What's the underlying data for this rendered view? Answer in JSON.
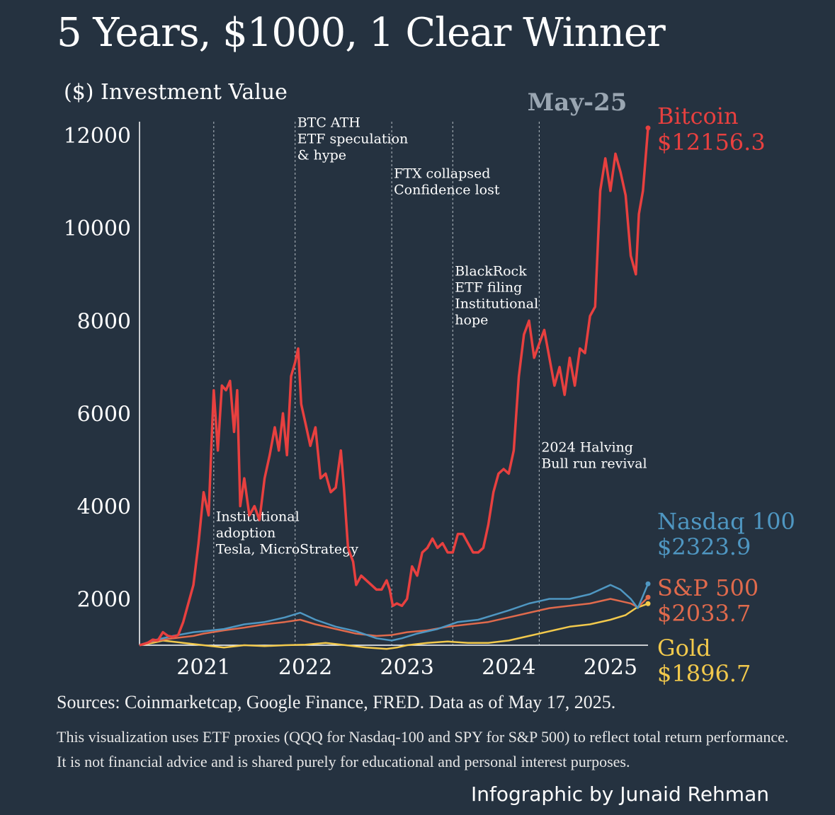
{
  "title": "5 Years, $1000, 1 Clear Winner",
  "footer": {
    "sources": "Sources: Coinmarketcap, Google Finance, FRED. Data as of May 17, 2025.",
    "disclaimer": "This visualization uses ETF proxies (QQQ for Nasdaq-100 and SPY for S&P 500) to reflect total return performance. It is not financial advice and is shared purely for educational and personal interest purposes.",
    "credit": "Infographic by Junaid Rehman"
  },
  "chart_data": {
    "type": "line",
    "ylabel": "($) Investment Value",
    "ylim": [
      1000,
      12200
    ],
    "xlim": [
      2020.37,
      2025.37
    ],
    "yticks": [
      2000,
      4000,
      6000,
      8000,
      10000,
      12000
    ],
    "xticks": [
      {
        "value": 2021,
        "label": "2021"
      },
      {
        "value": 2022,
        "label": "2022"
      },
      {
        "value": 2023,
        "label": "2023"
      },
      {
        "value": 2024,
        "label": "2024"
      },
      {
        "value": 2025,
        "label": "2025"
      }
    ],
    "date_marker": "May-25",
    "series": [
      {
        "name": "Bitcoin",
        "end_label": "$12156.3",
        "color": "#e8403f",
        "points": [
          [
            2020.37,
            1000
          ],
          [
            2020.45,
            1050
          ],
          [
            2020.5,
            1120
          ],
          [
            2020.55,
            1100
          ],
          [
            2020.6,
            1280
          ],
          [
            2020.65,
            1200
          ],
          [
            2020.7,
            1180
          ],
          [
            2020.75,
            1220
          ],
          [
            2020.8,
            1500
          ],
          [
            2020.85,
            1900
          ],
          [
            2020.9,
            2300
          ],
          [
            2020.95,
            3200
          ],
          [
            2021.0,
            4300
          ],
          [
            2021.05,
            3800
          ],
          [
            2021.08,
            5500
          ],
          [
            2021.1,
            6500
          ],
          [
            2021.14,
            5200
          ],
          [
            2021.18,
            6600
          ],
          [
            2021.22,
            6500
          ],
          [
            2021.26,
            6700
          ],
          [
            2021.3,
            5600
          ],
          [
            2021.33,
            6500
          ],
          [
            2021.36,
            4000
          ],
          [
            2021.4,
            4600
          ],
          [
            2021.45,
            3800
          ],
          [
            2021.5,
            4000
          ],
          [
            2021.55,
            3700
          ],
          [
            2021.6,
            4600
          ],
          [
            2021.65,
            5100
          ],
          [
            2021.7,
            5700
          ],
          [
            2021.74,
            5200
          ],
          [
            2021.78,
            6000
          ],
          [
            2021.82,
            5100
          ],
          [
            2021.86,
            6800
          ],
          [
            2021.9,
            7100
          ],
          [
            2021.93,
            7400
          ],
          [
            2021.96,
            6200
          ],
          [
            2022.0,
            5800
          ],
          [
            2022.05,
            5300
          ],
          [
            2022.1,
            5700
          ],
          [
            2022.15,
            4600
          ],
          [
            2022.2,
            4700
          ],
          [
            2022.25,
            4300
          ],
          [
            2022.3,
            4400
          ],
          [
            2022.35,
            5200
          ],
          [
            2022.38,
            4400
          ],
          [
            2022.42,
            3100
          ],
          [
            2022.47,
            2800
          ],
          [
            2022.5,
            2300
          ],
          [
            2022.55,
            2500
          ],
          [
            2022.6,
            2400
          ],
          [
            2022.65,
            2300
          ],
          [
            2022.7,
            2200
          ],
          [
            2022.75,
            2200
          ],
          [
            2022.8,
            2400
          ],
          [
            2022.83,
            2200
          ],
          [
            2022.86,
            1850
          ],
          [
            2022.9,
            1900
          ],
          [
            2022.95,
            1850
          ],
          [
            2023.0,
            2000
          ],
          [
            2023.05,
            2700
          ],
          [
            2023.1,
            2500
          ],
          [
            2023.15,
            3000
          ],
          [
            2023.2,
            3100
          ],
          [
            2023.25,
            3300
          ],
          [
            2023.3,
            3100
          ],
          [
            2023.35,
            3200
          ],
          [
            2023.4,
            3000
          ],
          [
            2023.45,
            3000
          ],
          [
            2023.5,
            3400
          ],
          [
            2023.55,
            3400
          ],
          [
            2023.6,
            3200
          ],
          [
            2023.65,
            3000
          ],
          [
            2023.7,
            3000
          ],
          [
            2023.75,
            3100
          ],
          [
            2023.8,
            3600
          ],
          [
            2023.85,
            4300
          ],
          [
            2023.9,
            4700
          ],
          [
            2023.95,
            4800
          ],
          [
            2024.0,
            4700
          ],
          [
            2024.05,
            5200
          ],
          [
            2024.1,
            6800
          ],
          [
            2024.15,
            7700
          ],
          [
            2024.2,
            8000
          ],
          [
            2024.25,
            7200
          ],
          [
            2024.3,
            7500
          ],
          [
            2024.35,
            7800
          ],
          [
            2024.4,
            7200
          ],
          [
            2024.45,
            6600
          ],
          [
            2024.5,
            7000
          ],
          [
            2024.55,
            6400
          ],
          [
            2024.6,
            7200
          ],
          [
            2024.65,
            6600
          ],
          [
            2024.7,
            7400
          ],
          [
            2024.75,
            7300
          ],
          [
            2024.8,
            8100
          ],
          [
            2024.85,
            8300
          ],
          [
            2024.9,
            10800
          ],
          [
            2024.95,
            11500
          ],
          [
            2025.0,
            10800
          ],
          [
            2025.05,
            11600
          ],
          [
            2025.1,
            11200
          ],
          [
            2025.15,
            10700
          ],
          [
            2025.2,
            9400
          ],
          [
            2025.25,
            9000
          ],
          [
            2025.28,
            10300
          ],
          [
            2025.32,
            10800
          ],
          [
            2025.37,
            12156.3
          ]
        ]
      },
      {
        "name": "Nasdaq 100",
        "end_label": "$2323.9",
        "color": "#4f97c2",
        "points": [
          [
            2020.37,
            1000
          ],
          [
            2020.5,
            1100
          ],
          [
            2020.7,
            1200
          ],
          [
            2020.9,
            1280
          ],
          [
            2021.0,
            1300
          ],
          [
            2021.2,
            1350
          ],
          [
            2021.4,
            1450
          ],
          [
            2021.6,
            1500
          ],
          [
            2021.8,
            1600
          ],
          [
            2021.95,
            1700
          ],
          [
            2022.0,
            1650
          ],
          [
            2022.1,
            1550
          ],
          [
            2022.3,
            1400
          ],
          [
            2022.5,
            1300
          ],
          [
            2022.7,
            1150
          ],
          [
            2022.85,
            1100
          ],
          [
            2022.95,
            1150
          ],
          [
            2023.1,
            1250
          ],
          [
            2023.3,
            1350
          ],
          [
            2023.5,
            1500
          ],
          [
            2023.7,
            1550
          ],
          [
            2023.85,
            1650
          ],
          [
            2024.0,
            1750
          ],
          [
            2024.2,
            1900
          ],
          [
            2024.4,
            2000
          ],
          [
            2024.6,
            2000
          ],
          [
            2024.8,
            2100
          ],
          [
            2025.0,
            2300
          ],
          [
            2025.1,
            2200
          ],
          [
            2025.2,
            2000
          ],
          [
            2025.27,
            1800
          ],
          [
            2025.37,
            2323.9
          ]
        ]
      },
      {
        "name": "S&P 500",
        "end_label": "$2033.7",
        "color": "#e06a4c",
        "points": [
          [
            2020.37,
            1000
          ],
          [
            2020.5,
            1080
          ],
          [
            2020.7,
            1150
          ],
          [
            2020.9,
            1200
          ],
          [
            2021.0,
            1250
          ],
          [
            2021.2,
            1320
          ],
          [
            2021.4,
            1380
          ],
          [
            2021.6,
            1450
          ],
          [
            2021.8,
            1500
          ],
          [
            2021.95,
            1550
          ],
          [
            2022.1,
            1450
          ],
          [
            2022.3,
            1350
          ],
          [
            2022.5,
            1250
          ],
          [
            2022.7,
            1200
          ],
          [
            2022.85,
            1220
          ],
          [
            2023.0,
            1280
          ],
          [
            2023.2,
            1320
          ],
          [
            2023.4,
            1400
          ],
          [
            2023.6,
            1450
          ],
          [
            2023.8,
            1500
          ],
          [
            2024.0,
            1600
          ],
          [
            2024.2,
            1700
          ],
          [
            2024.4,
            1800
          ],
          [
            2024.6,
            1850
          ],
          [
            2024.8,
            1900
          ],
          [
            2025.0,
            2000
          ],
          [
            2025.1,
            1950
          ],
          [
            2025.2,
            1900
          ],
          [
            2025.27,
            1820
          ],
          [
            2025.37,
            2033.7
          ]
        ]
      },
      {
        "name": "Gold",
        "end_label": "$1896.7",
        "color": "#f2c94c",
        "points": [
          [
            2020.37,
            1000
          ],
          [
            2020.5,
            1050
          ],
          [
            2020.6,
            1100
          ],
          [
            2020.8,
            1050
          ],
          [
            2021.0,
            1000
          ],
          [
            2021.2,
            950
          ],
          [
            2021.4,
            1000
          ],
          [
            2021.6,
            980
          ],
          [
            2021.8,
            1000
          ],
          [
            2022.0,
            1010
          ],
          [
            2022.2,
            1050
          ],
          [
            2022.4,
            1000
          ],
          [
            2022.6,
            950
          ],
          [
            2022.8,
            920
          ],
          [
            2022.9,
            950
          ],
          [
            2023.0,
            1000
          ],
          [
            2023.2,
            1050
          ],
          [
            2023.4,
            1080
          ],
          [
            2023.6,
            1050
          ],
          [
            2023.8,
            1050
          ],
          [
            2024.0,
            1100
          ],
          [
            2024.2,
            1200
          ],
          [
            2024.4,
            1300
          ],
          [
            2024.6,
            1400
          ],
          [
            2024.8,
            1450
          ],
          [
            2025.0,
            1550
          ],
          [
            2025.15,
            1650
          ],
          [
            2025.25,
            1800
          ],
          [
            2025.37,
            1896.7
          ]
        ]
      }
    ],
    "annotations": [
      {
        "x": 2021.1,
        "y_text_top": 3950,
        "lines": [
          "Institutional",
          "adoption",
          "Tesla, MicroStrategy"
        ]
      },
      {
        "x": 2021.9,
        "y_text_top": 12450,
        "lines": [
          "BTC ATH",
          "ETF speculation",
          "& hype"
        ]
      },
      {
        "x": 2022.85,
        "y_text_top": 11350,
        "lines": [
          "FTX collapsed",
          "Confidence lost"
        ]
      },
      {
        "x": 2023.45,
        "y_text_top": 9250,
        "lines": [
          "BlackRock",
          "ETF filing",
          "Institutional",
          "hope"
        ]
      },
      {
        "x": 2024.3,
        "y_text_top": 5450,
        "lines": [
          "2024 Halving",
          "Bull run revival"
        ]
      }
    ]
  }
}
